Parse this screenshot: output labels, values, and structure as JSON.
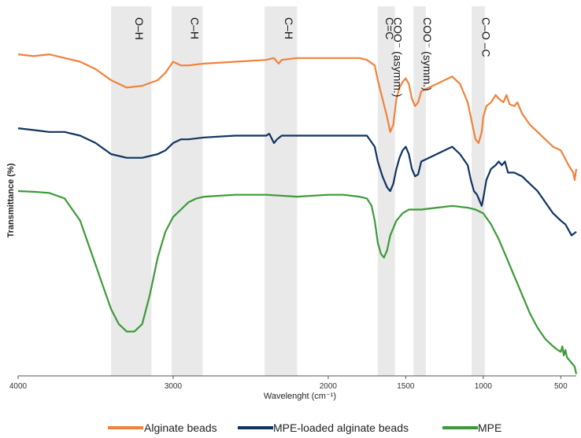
{
  "chart_data": {
    "type": "line",
    "title": "",
    "xlabel": "Wavelenght (cm⁻¹)",
    "ylabel": "Transmittance (%)",
    "xlim": [
      4000,
      400
    ],
    "x_reversed": true,
    "x_ticks": [
      4000,
      3000,
      2000,
      1500,
      1000,
      500
    ],
    "x_tick_labels": [
      "4000",
      "3000",
      "2000",
      "1500",
      "1000",
      "500"
    ],
    "grid": false,
    "legend_position": "bottom",
    "bands": [
      {
        "label": "O–H",
        "from": 3400,
        "to": 3140
      },
      {
        "label": "C–H",
        "from": 3010,
        "to": 2810
      },
      {
        "label": "C–H",
        "from": 2410,
        "to": 2200
      },
      {
        "label": "C=C",
        "from": 1680,
        "to": 1630
      },
      {
        "label": "COO⁻ (asymm.)",
        "from": 1630,
        "to": 1570
      },
      {
        "label": "COO⁻ (symm.)",
        "from": 1450,
        "to": 1370
      },
      {
        "label": "C–O –C",
        "from": 1075,
        "to": 990
      }
    ],
    "series": [
      {
        "name": "Alginate beads",
        "color": "#F0823C",
        "points": [
          [
            4000,
            87
          ],
          [
            3900,
            86.5
          ],
          [
            3800,
            87
          ],
          [
            3700,
            86
          ],
          [
            3600,
            85
          ],
          [
            3500,
            83
          ],
          [
            3400,
            80
          ],
          [
            3300,
            78
          ],
          [
            3200,
            78.5
          ],
          [
            3100,
            80
          ],
          [
            3050,
            82
          ],
          [
            3000,
            85
          ],
          [
            2950,
            84
          ],
          [
            2900,
            84
          ],
          [
            2800,
            84.5
          ],
          [
            2600,
            85
          ],
          [
            2400,
            85.5
          ],
          [
            2350,
            86
          ],
          [
            2320,
            84.5
          ],
          [
            2300,
            85.5
          ],
          [
            2200,
            86
          ],
          [
            2000,
            86
          ],
          [
            1900,
            86
          ],
          [
            1800,
            86
          ],
          [
            1750,
            85.5
          ],
          [
            1700,
            84
          ],
          [
            1680,
            80
          ],
          [
            1650,
            75
          ],
          [
            1620,
            70
          ],
          [
            1600,
            66
          ],
          [
            1580,
            68
          ],
          [
            1560,
            75
          ],
          [
            1540,
            78
          ],
          [
            1520,
            79.5
          ],
          [
            1500,
            80.5
          ],
          [
            1480,
            79
          ],
          [
            1460,
            75
          ],
          [
            1440,
            73
          ],
          [
            1420,
            74
          ],
          [
            1400,
            77
          ],
          [
            1350,
            78
          ],
          [
            1300,
            79
          ],
          [
            1250,
            80
          ],
          [
            1200,
            81
          ],
          [
            1150,
            79
          ],
          [
            1100,
            74
          ],
          [
            1070,
            68
          ],
          [
            1050,
            64
          ],
          [
            1030,
            63
          ],
          [
            1010,
            66
          ],
          [
            1000,
            70
          ],
          [
            980,
            73
          ],
          [
            950,
            74
          ],
          [
            920,
            76
          ],
          [
            900,
            75
          ],
          [
            870,
            74
          ],
          [
            850,
            76
          ],
          [
            830,
            73.5
          ],
          [
            800,
            73
          ],
          [
            780,
            74
          ],
          [
            750,
            71
          ],
          [
            700,
            68
          ],
          [
            650,
            66
          ],
          [
            600,
            64
          ],
          [
            550,
            62
          ],
          [
            500,
            61
          ],
          [
            480,
            59.5
          ],
          [
            450,
            57
          ],
          [
            420,
            55
          ],
          [
            410,
            53
          ],
          [
            400,
            56
          ]
        ]
      },
      {
        "name": "MPE-loaded alginate beads",
        "color": "#0F3460",
        "points": [
          [
            4000,
            67
          ],
          [
            3900,
            66.5
          ],
          [
            3800,
            66
          ],
          [
            3700,
            66
          ],
          [
            3600,
            65
          ],
          [
            3500,
            63
          ],
          [
            3400,
            60
          ],
          [
            3300,
            59
          ],
          [
            3200,
            59
          ],
          [
            3100,
            60
          ],
          [
            3050,
            61
          ],
          [
            3000,
            63
          ],
          [
            2950,
            64
          ],
          [
            2900,
            64
          ],
          [
            2800,
            64.5
          ],
          [
            2600,
            65
          ],
          [
            2400,
            65
          ],
          [
            2380,
            65.5
          ],
          [
            2350,
            63
          ],
          [
            2330,
            64
          ],
          [
            2300,
            65
          ],
          [
            2200,
            65
          ],
          [
            2000,
            65
          ],
          [
            1900,
            65
          ],
          [
            1800,
            65
          ],
          [
            1750,
            65
          ],
          [
            1700,
            62
          ],
          [
            1680,
            58
          ],
          [
            1650,
            54
          ],
          [
            1620,
            51
          ],
          [
            1600,
            50
          ],
          [
            1580,
            52
          ],
          [
            1560,
            56
          ],
          [
            1540,
            59
          ],
          [
            1520,
            61
          ],
          [
            1500,
            62
          ],
          [
            1480,
            60
          ],
          [
            1460,
            56
          ],
          [
            1440,
            54
          ],
          [
            1420,
            54.5
          ],
          [
            1400,
            58
          ],
          [
            1350,
            59
          ],
          [
            1300,
            60
          ],
          [
            1250,
            61
          ],
          [
            1200,
            62
          ],
          [
            1150,
            60
          ],
          [
            1100,
            57
          ],
          [
            1080,
            53
          ],
          [
            1060,
            50
          ],
          [
            1040,
            49
          ],
          [
            1020,
            47
          ],
          [
            1010,
            46
          ],
          [
            1000,
            48
          ],
          [
            980,
            53
          ],
          [
            950,
            56
          ],
          [
            920,
            57
          ],
          [
            900,
            58
          ],
          [
            880,
            57
          ],
          [
            860,
            58
          ],
          [
            840,
            55
          ],
          [
            800,
            55
          ],
          [
            750,
            54
          ],
          [
            700,
            52
          ],
          [
            650,
            50
          ],
          [
            600,
            47
          ],
          [
            550,
            44
          ],
          [
            500,
            42
          ],
          [
            470,
            41
          ],
          [
            430,
            38
          ],
          [
            400,
            39
          ]
        ]
      },
      {
        "name": "MPE",
        "color": "#3C9A38",
        "points": [
          [
            4000,
            50
          ],
          [
            3900,
            49.8
          ],
          [
            3800,
            49.5
          ],
          [
            3700,
            48
          ],
          [
            3600,
            42
          ],
          [
            3500,
            30
          ],
          [
            3450,
            24
          ],
          [
            3400,
            18
          ],
          [
            3350,
            14
          ],
          [
            3300,
            12
          ],
          [
            3250,
            12
          ],
          [
            3200,
            14
          ],
          [
            3150,
            22
          ],
          [
            3100,
            32
          ],
          [
            3050,
            39
          ],
          [
            3000,
            43
          ],
          [
            2950,
            45
          ],
          [
            2900,
            47
          ],
          [
            2850,
            48
          ],
          [
            2800,
            48.5
          ],
          [
            2600,
            49
          ],
          [
            2400,
            49
          ],
          [
            2200,
            48.5
          ],
          [
            2000,
            49
          ],
          [
            1900,
            49
          ],
          [
            1800,
            48.5
          ],
          [
            1750,
            48
          ],
          [
            1720,
            46
          ],
          [
            1700,
            42
          ],
          [
            1680,
            36
          ],
          [
            1660,
            33
          ],
          [
            1640,
            32
          ],
          [
            1620,
            34
          ],
          [
            1600,
            38
          ],
          [
            1560,
            42
          ],
          [
            1520,
            44
          ],
          [
            1480,
            45
          ],
          [
            1400,
            45
          ],
          [
            1300,
            45.5
          ],
          [
            1200,
            46
          ],
          [
            1100,
            45.5
          ],
          [
            1050,
            45
          ],
          [
            1000,
            44
          ],
          [
            950,
            41
          ],
          [
            900,
            37
          ],
          [
            850,
            32
          ],
          [
            800,
            27
          ],
          [
            750,
            22
          ],
          [
            700,
            17
          ],
          [
            650,
            13
          ],
          [
            600,
            10
          ],
          [
            550,
            8
          ],
          [
            520,
            7
          ],
          [
            500,
            6.5
          ],
          [
            490,
            8
          ],
          [
            480,
            5.5
          ],
          [
            470,
            7
          ],
          [
            460,
            5
          ],
          [
            440,
            4
          ],
          [
            420,
            3
          ],
          [
            410,
            2.5
          ],
          [
            400,
            0.5
          ]
        ]
      }
    ]
  }
}
